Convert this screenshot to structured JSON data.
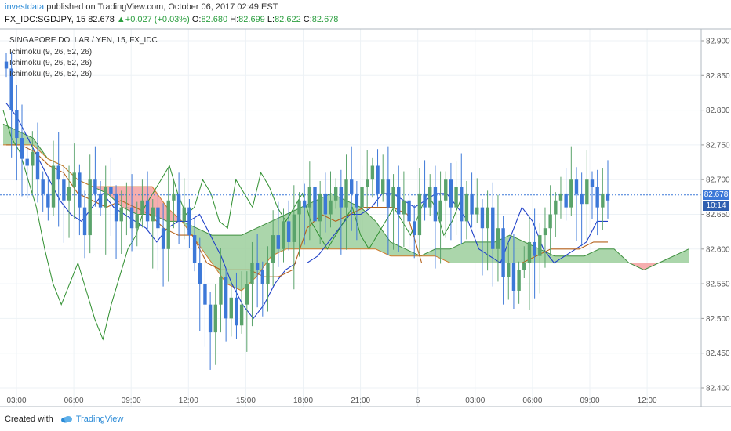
{
  "header": {
    "publisher": "investdata",
    "published_text": "published on TradingView.com, October 06, 2017 02:49 EST",
    "symbol": "FX_IDC:SGDJPY, 15",
    "last": "82.678",
    "change": "+0.027 (+0.03%)",
    "open_label": "O:",
    "open": "82.680",
    "high_label": "H:",
    "high": "82.699",
    "low_label": "L:",
    "low": "82.622",
    "close_label": "C:",
    "close": "82.678"
  },
  "legend": {
    "title": "SINGAPORE DOLLAR / YEN, 15, FX_IDC",
    "indicators": [
      "Ichimoku (9, 26, 52, 26)",
      "Ichimoku (9, 26, 52, 26)",
      "Ichimoku (9, 26, 52, 26)"
    ]
  },
  "price_tag": {
    "value": "82.678",
    "countdown": "10:14"
  },
  "footer": {
    "created_with": "Created with",
    "brand": "TradingView"
  },
  "colors": {
    "bull": "#5aa36b",
    "bear": "#3c78d8",
    "tenkan": "#1e3fc8",
    "kijun": "#b5611b",
    "chikou": "#2f8f2f",
    "cloud_bull": "#9ccf9c",
    "cloud_bear": "#f4a0a0",
    "grid": "#edf2f6",
    "axis_text": "#555555",
    "price_line": "#3c78d8"
  },
  "chart_data": {
    "type": "candlestick",
    "title": "SINGAPORE DOLLAR / YEN, 15, FX_IDC",
    "ylim": [
      82.39,
      82.93
    ],
    "y_ticks": [
      "82.900",
      "82.850",
      "82.800",
      "82.750",
      "82.700",
      "82.650",
      "82.600",
      "82.550",
      "82.500",
      "82.450",
      "82.400"
    ],
    "x_ticks": [
      "03:00",
      "06:00",
      "09:00",
      "12:00",
      "15:00",
      "18:00",
      "21:00",
      "6",
      "03:00",
      "06:00",
      "09:00",
      "12:00"
    ],
    "last_price": 82.678,
    "closes": [
      82.86,
      82.8,
      82.76,
      82.73,
      82.72,
      82.74,
      82.7,
      82.68,
      82.66,
      82.72,
      82.7,
      82.67,
      82.69,
      82.71,
      82.66,
      82.62,
      82.7,
      82.68,
      82.66,
      82.69,
      82.68,
      82.64,
      82.66,
      82.66,
      82.63,
      82.65,
      82.67,
      82.64,
      82.66,
      82.63,
      82.6,
      82.67,
      82.68,
      82.64,
      82.66,
      82.62,
      82.58,
      82.55,
      82.52,
      82.48,
      82.52,
      82.56,
      82.5,
      82.53,
      82.49,
      82.52,
      82.55,
      82.58,
      82.57,
      82.55,
      82.58,
      82.62,
      82.6,
      82.64,
      82.61,
      82.65,
      82.67,
      82.66,
      82.69,
      82.64,
      82.68,
      82.65,
      82.67,
      82.69,
      82.66,
      82.7,
      82.68,
      82.66,
      82.69,
      82.7,
      82.72,
      82.68,
      82.7,
      82.66,
      82.69,
      82.65,
      82.67,
      82.64,
      82.62,
      82.68,
      82.66,
      82.69,
      82.64,
      82.67,
      82.7,
      82.66,
      82.69,
      82.64,
      82.68,
      82.65,
      82.66,
      82.63,
      82.66,
      82.6,
      82.63,
      82.56,
      82.58,
      82.54,
      82.57,
      82.58,
      82.61,
      82.59,
      82.62,
      82.63,
      82.65,
      82.67,
      82.68,
      82.66,
      82.7,
      82.68,
      82.665,
      82.7,
      82.69,
      82.66,
      82.68,
      82.67
    ],
    "tenkan": [
      82.81,
      82.79,
      82.76,
      82.73,
      82.7,
      82.67,
      82.65,
      82.64,
      82.66,
      82.68,
      82.66,
      82.65,
      82.64,
      82.63,
      82.61,
      82.63,
      82.64,
      82.64,
      82.65,
      82.62,
      82.59,
      82.55,
      82.52,
      82.5,
      82.52,
      82.55,
      82.57,
      82.58,
      82.58,
      82.59,
      82.61,
      82.63,
      82.65,
      82.65,
      82.66,
      82.68,
      82.68,
      82.67,
      82.66,
      82.67,
      82.68,
      82.68,
      82.66,
      82.64,
      82.6,
      82.59,
      82.58,
      82.62,
      82.66,
      82.64,
      82.6,
      82.58,
      82.59,
      82.6,
      82.61,
      82.64,
      82.64
    ],
    "kijun": [
      82.75,
      82.75,
      82.74,
      82.72,
      82.71,
      82.68,
      82.67,
      82.66,
      82.67,
      82.66,
      82.65,
      82.63,
      82.62,
      82.62,
      82.58,
      82.57,
      82.57,
      82.57,
      82.56,
      82.56,
      82.57,
      82.63,
      82.65,
      82.64,
      82.65,
      82.66,
      82.66,
      82.66,
      82.65,
      82.58,
      82.58,
      82.58,
      82.58,
      82.58,
      82.58,
      82.58,
      82.58,
      82.59,
      82.6,
      82.6,
      82.6,
      82.61,
      82.61
    ],
    "chikou": [
      82.8,
      82.76,
      82.74,
      82.7,
      82.66,
      82.6,
      82.55,
      82.52,
      82.55,
      82.58,
      82.54,
      82.5,
      82.47,
      82.52,
      82.56,
      82.6,
      82.62,
      82.66,
      82.68,
      82.7,
      82.72,
      82.68,
      82.65,
      82.66,
      82.7,
      82.68,
      82.64,
      82.63,
      82.7,
      82.68,
      82.66,
      82.71,
      82.69,
      82.66,
      82.64,
      82.66,
      82.68,
      82.64,
      82.62,
      82.6,
      82.62,
      82.64,
      82.66,
      82.62,
      82.6,
      82.62,
      82.64,
      82.66,
      82.64,
      82.62,
      82.65,
      82.68,
      82.66,
      82.62,
      82.64,
      82.67
    ],
    "span_a": [
      82.78,
      82.77,
      82.76,
      82.73,
      82.72,
      82.7,
      82.69,
      82.68,
      82.66,
      82.65,
      82.65,
      82.64,
      82.64,
      82.63,
      82.62,
      82.62,
      82.62,
      82.63,
      82.64,
      82.65,
      82.66,
      82.67,
      82.68,
      82.67,
      82.66,
      82.64,
      82.61,
      82.6,
      82.59,
      82.6,
      82.6,
      82.61,
      82.61,
      82.61,
      82.62,
      82.61,
      82.6,
      82.59,
      82.59,
      82.59,
      82.6,
      82.6,
      82.58,
      82.57,
      82.58,
      82.59,
      82.6
    ],
    "span_b": [
      82.75,
      82.75,
      82.75,
      82.73,
      82.72,
      82.7,
      82.69,
      82.69,
      82.69,
      82.69,
      82.69,
      82.66,
      82.64,
      82.61,
      82.58,
      82.55,
      82.54,
      82.56,
      82.59,
      82.6,
      82.6,
      82.6,
      82.6,
      82.6,
      82.6,
      82.6,
      82.59,
      82.59,
      82.59,
      82.59,
      82.58,
      82.58,
      82.58,
      82.58,
      82.58,
      82.58,
      82.58,
      82.58,
      82.58,
      82.58,
      82.58,
      82.58,
      82.58,
      82.58,
      82.58,
      82.58,
      82.58
    ]
  }
}
